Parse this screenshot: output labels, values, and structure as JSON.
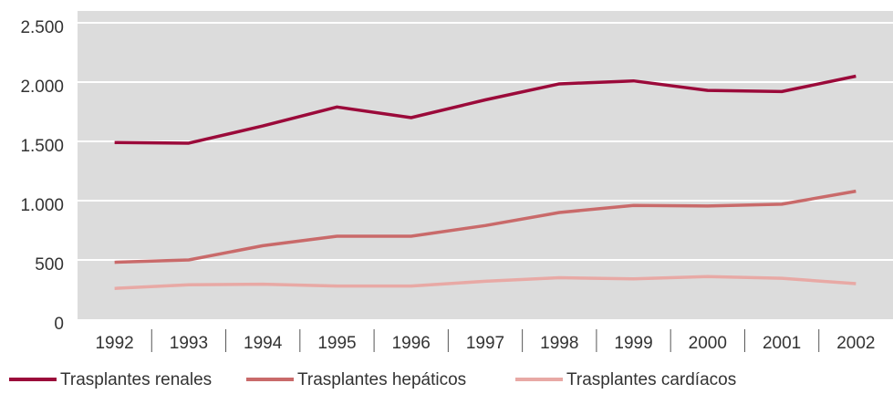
{
  "chart_data": {
    "type": "line",
    "categories": [
      "1992",
      "1993",
      "1994",
      "1995",
      "1996",
      "1997",
      "1998",
      "1999",
      "2000",
      "2001",
      "2002"
    ],
    "series": [
      {
        "name": "Trasplantes renales",
        "color": "#9b0a3a",
        "values": [
          1490,
          1485,
          1630,
          1790,
          1700,
          1850,
          1985,
          2010,
          1930,
          1920,
          2050
        ]
      },
      {
        "name": "Trasplantes hepáticos",
        "color": "#c96a6a",
        "values": [
          480,
          500,
          620,
          700,
          700,
          790,
          900,
          960,
          955,
          970,
          1080
        ]
      },
      {
        "name": "Trasplantes cardíacos",
        "color": "#e8a9a5",
        "values": [
          260,
          290,
          295,
          280,
          280,
          320,
          350,
          340,
          360,
          345,
          300
        ]
      }
    ],
    "ylim": [
      0,
      2600
    ],
    "yticks": [
      0,
      500,
      {
        "value": 1000,
        "label": "1.000"
      },
      {
        "value": 1500,
        "label": "1.500"
      },
      {
        "value": 2000,
        "label": "2.000"
      },
      {
        "value": 2500,
        "label": "2.500"
      }
    ],
    "grid": true,
    "legend": "bottom-left"
  }
}
